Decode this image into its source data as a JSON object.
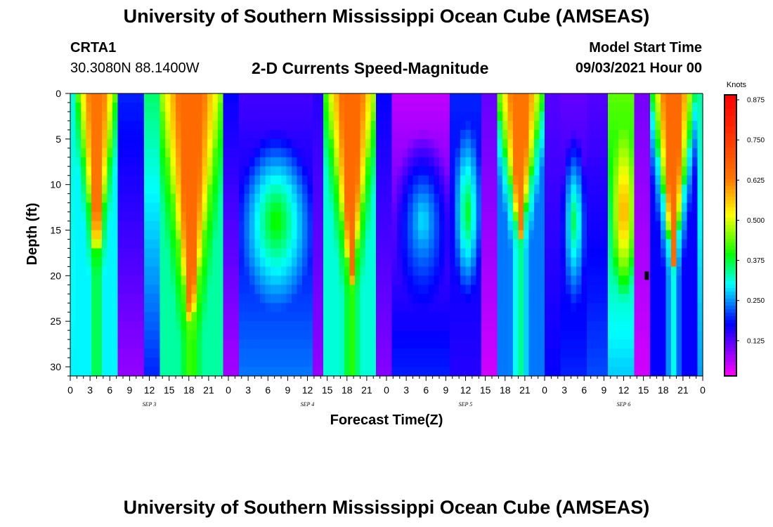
{
  "title": "University of Southern Mississippi Ocean Cube (AMSEAS)",
  "footer_title": "University of Southern Mississippi Ocean Cube (AMSEAS)",
  "station": {
    "id": "CRTA1",
    "coords": "30.3080N  88.1400W"
  },
  "subtitle": "2-D Currents Speed-Magnitude",
  "model_start": {
    "label": "Model Start Time",
    "value": "09/03/2021 Hour 00"
  },
  "chart_data": {
    "type": "heatmap",
    "xlabel": "Forecast Time(Z)",
    "ylabel": "Depth (ft)",
    "xlim": [
      0,
      96
    ],
    "ylim": [
      0,
      31
    ],
    "y_inverted": true,
    "x_ticks": [
      {
        "hour": 0,
        "label": "0"
      },
      {
        "hour": 3,
        "label": "3"
      },
      {
        "hour": 6,
        "label": "6"
      },
      {
        "hour": 9,
        "label": "9"
      },
      {
        "hour": 12,
        "label": "12"
      },
      {
        "hour": 15,
        "label": "15"
      },
      {
        "hour": 18,
        "label": "18"
      },
      {
        "hour": 21,
        "label": "21"
      },
      {
        "hour": 24,
        "label": "0"
      },
      {
        "hour": 27,
        "label": "3"
      },
      {
        "hour": 30,
        "label": "6"
      },
      {
        "hour": 33,
        "label": "9"
      },
      {
        "hour": 36,
        "label": "12"
      },
      {
        "hour": 39,
        "label": "15"
      },
      {
        "hour": 42,
        "label": "18"
      },
      {
        "hour": 45,
        "label": "21"
      },
      {
        "hour": 48,
        "label": "0"
      },
      {
        "hour": 51,
        "label": "3"
      },
      {
        "hour": 54,
        "label": "6"
      },
      {
        "hour": 57,
        "label": "9"
      },
      {
        "hour": 60,
        "label": "12"
      },
      {
        "hour": 63,
        "label": "15"
      },
      {
        "hour": 66,
        "label": "18"
      },
      {
        "hour": 69,
        "label": "21"
      },
      {
        "hour": 72,
        "label": "0"
      },
      {
        "hour": 75,
        "label": "3"
      },
      {
        "hour": 78,
        "label": "6"
      },
      {
        "hour": 81,
        "label": "9"
      },
      {
        "hour": 84,
        "label": "12"
      },
      {
        "hour": 87,
        "label": "15"
      },
      {
        "hour": 90,
        "label": "18"
      },
      {
        "hour": 93,
        "label": "21"
      },
      {
        "hour": 96,
        "label": "0"
      }
    ],
    "date_labels": [
      {
        "hour": 12,
        "label": "SEP 3"
      },
      {
        "hour": 36,
        "label": "SEP 4"
      },
      {
        "hour": 60,
        "label": "SEP 5"
      },
      {
        "hour": 84,
        "label": "SEP 6"
      }
    ],
    "y_ticks": [
      0,
      5,
      10,
      15,
      20,
      25,
      30
    ],
    "colorbar": {
      "label": "Knots",
      "range": [
        0,
        0.875
      ],
      "ticks": [
        "0.875",
        "0.750",
        "0.625",
        "0.500",
        "0.375",
        "0.250",
        "0.125"
      ]
    },
    "columns": [
      {
        "x0": 0,
        "x1": 1,
        "surface": 0.3,
        "bottom": 0.28,
        "shape": "flat"
      },
      {
        "x0": 1,
        "x1": 7,
        "surface": 0.62,
        "bottom": 0.28,
        "shape": "funnel",
        "depth": 20
      },
      {
        "x0": 7,
        "x1": 7.6,
        "surface": 0.34,
        "bottom": 0.26,
        "shape": "flat"
      },
      {
        "x0": 7.6,
        "x1": 11,
        "surface": 0.18,
        "bottom": 0.07,
        "shape": "flat"
      },
      {
        "x0": 11,
        "x1": 13.6,
        "surface": 0.34,
        "bottom": 0.18,
        "shape": "flat"
      },
      {
        "x0": 13.6,
        "x1": 23,
        "surface": 0.64,
        "bottom": 0.32,
        "shape": "funnel",
        "depth": 27
      },
      {
        "x0": 23,
        "x1": 25.5,
        "surface": 0.16,
        "bottom": 0.06,
        "shape": "flat"
      },
      {
        "x0": 25.5,
        "x1": 37,
        "surface": 0.12,
        "bottom": 0.22,
        "shape": "lens",
        "peak": 0.4,
        "center": 14
      },
      {
        "x0": 37,
        "x1": 38.8,
        "surface": 0.14,
        "bottom": 0.07,
        "shape": "flat"
      },
      {
        "x0": 38.8,
        "x1": 46.5,
        "surface": 0.64,
        "bottom": 0.3,
        "shape": "funnel",
        "depth": 22
      },
      {
        "x0": 46.5,
        "x1": 49,
        "surface": 0.16,
        "bottom": 0.08,
        "shape": "flat"
      },
      {
        "x0": 49,
        "x1": 58,
        "surface": 0.04,
        "bottom": 0.18,
        "shape": "lens",
        "peak": 0.28,
        "center": 14
      },
      {
        "x0": 58,
        "x1": 62.5,
        "surface": 0.18,
        "bottom": 0.14,
        "shape": "lens",
        "peak": 0.38,
        "center": 13
      },
      {
        "x0": 62.5,
        "x1": 64.5,
        "surface": 0.1,
        "bottom": 0.03,
        "shape": "flat"
      },
      {
        "x0": 64.5,
        "x1": 72,
        "surface": 0.62,
        "bottom": 0.22,
        "shape": "funnel",
        "depth": 17
      },
      {
        "x0": 72,
        "x1": 74.5,
        "surface": 0.11,
        "bottom": 0.16,
        "shape": "flat"
      },
      {
        "x0": 74.5,
        "x1": 78.5,
        "surface": 0.1,
        "bottom": 0.18,
        "shape": "lens",
        "peak": 0.36,
        "center": 14
      },
      {
        "x0": 78.5,
        "x1": 82,
        "surface": 0.11,
        "bottom": 0.2,
        "shape": "flat"
      },
      {
        "x0": 82,
        "x1": 86,
        "surface": 0.42,
        "bottom": 0.26,
        "shape": "lens",
        "peak": 0.6,
        "center": 13
      },
      {
        "x0": 86,
        "x1": 88,
        "surface": 0.09,
        "bottom": 0.03,
        "shape": "flat"
      },
      {
        "x0": 88,
        "x1": 95,
        "surface": 0.64,
        "bottom": 0.16,
        "shape": "funnel",
        "depth": 20
      },
      {
        "x0": 95,
        "x1": 96,
        "surface": 0.32,
        "bottom": 0.24,
        "shape": "flat"
      }
    ],
    "annotation": {
      "hour": 87.5,
      "depth": 20,
      "label": "black marker"
    }
  }
}
